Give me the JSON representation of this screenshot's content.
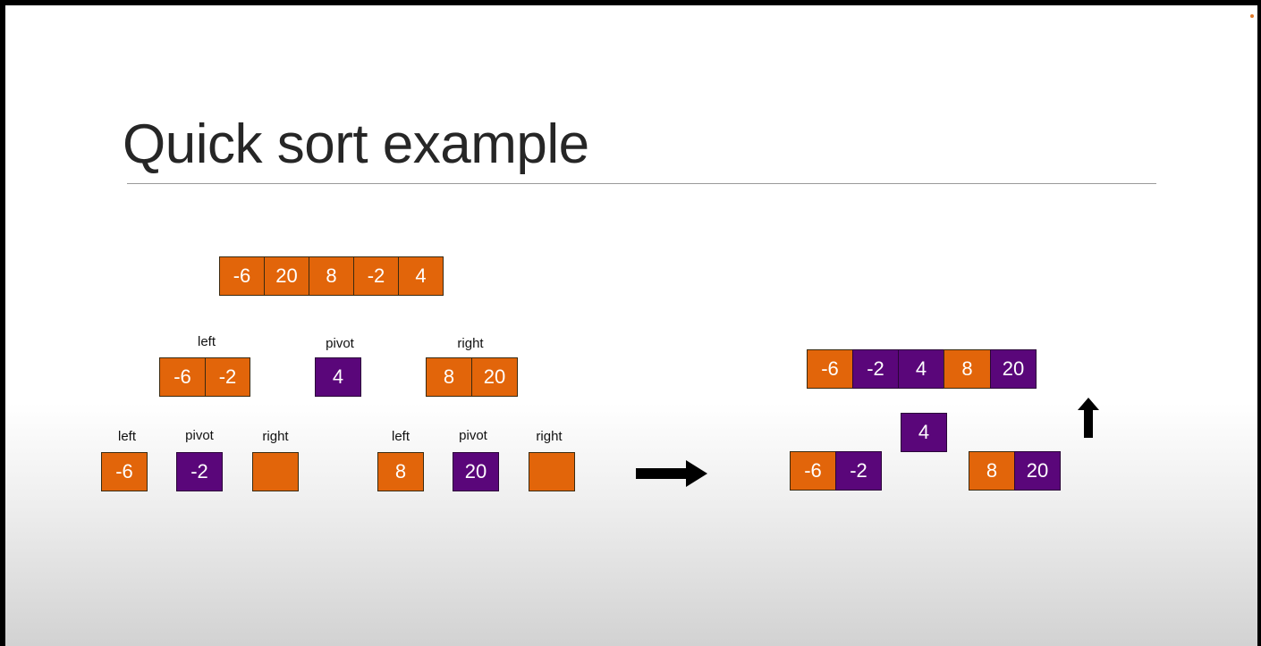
{
  "slide": {
    "title": "Quick sort example"
  },
  "labels": {
    "left": "left",
    "pivot": "pivot",
    "right": "right"
  },
  "colors": {
    "orange": "#e2650a",
    "purple": "#5a067a"
  },
  "diagram": {
    "initial_array": [
      "-6",
      "20",
      "8",
      "-2",
      "4"
    ],
    "level1": {
      "left": [
        "-6",
        "-2"
      ],
      "pivot": "4",
      "right": [
        "8",
        "20"
      ]
    },
    "level2_left": {
      "left": "-6",
      "pivot": "-2",
      "right": ""
    },
    "level2_right": {
      "left": "8",
      "pivot": "20",
      "right": ""
    },
    "merge_pivot": "4",
    "merge_left": [
      "-6",
      "-2"
    ],
    "merge_right": [
      "8",
      "20"
    ],
    "sorted_array": [
      "-6",
      "-2",
      "4",
      "8",
      "20"
    ]
  }
}
